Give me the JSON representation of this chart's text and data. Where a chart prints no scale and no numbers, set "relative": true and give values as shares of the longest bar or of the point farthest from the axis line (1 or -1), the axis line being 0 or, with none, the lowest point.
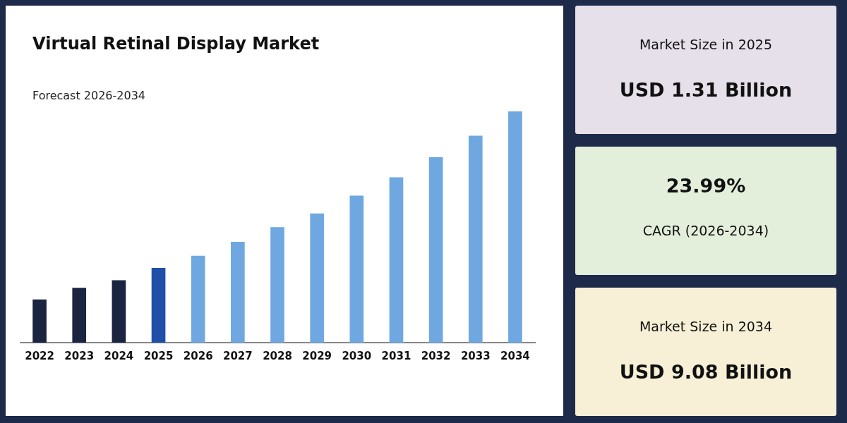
{
  "chart_data": [
    {
      "type": "bar",
      "title": "Virtual Retinal Display Market",
      "subtitle": "Forecast 2026-2034",
      "relative": true,
      "categories": [
        "2022",
        "2023",
        "2024",
        "2025",
        "2026",
        "2027",
        "2028",
        "2029",
        "2030",
        "2031",
        "2032",
        "2033",
        "2034"
      ],
      "values": [
        0.186,
        0.236,
        0.269,
        0.322,
        0.375,
        0.435,
        0.498,
        0.558,
        0.635,
        0.714,
        0.801,
        0.894,
        1
      ],
      "colors": [
        "#1b2541",
        "#1b2541",
        "#1b2541",
        "#1f4fa8",
        "#6fa8e0",
        "#6fa8e0",
        "#6fa8e0",
        "#6fa8e0",
        "#6fa8e0",
        "#6fa8e0",
        "#6fa8e0",
        "#6fa8e0",
        "#6fa8e0"
      ],
      "grid": false,
      "legend": false
    },
    {
      "type": "other",
      "annotations": [
        "Market Size in 2025",
        "USD 1.31 Billion"
      ]
    },
    {
      "type": "other",
      "annotations": [
        "23.99%",
        "CAGR (2026-2034)"
      ]
    },
    {
      "type": "other",
      "annotations": [
        "Market Size in 2034",
        "USD 9.08 Billion"
      ]
    }
  ]
}
